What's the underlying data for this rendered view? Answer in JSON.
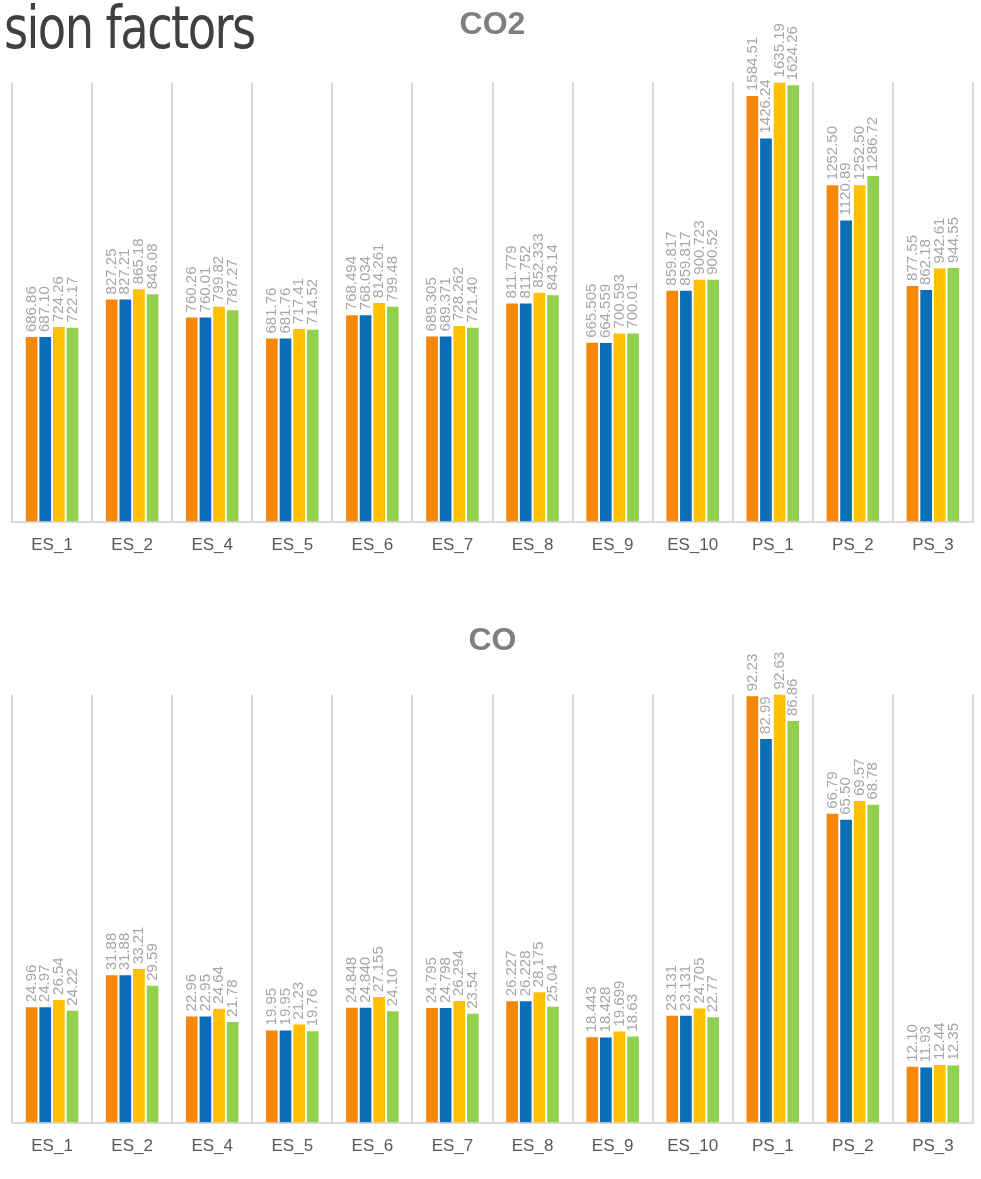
{
  "chart_data": [
    {
      "type": "bar",
      "title": "CO2",
      "annotations": [
        "sion factors"
      ],
      "categories": [
        "ES_1",
        "ES_2",
        "ES_4",
        "ES_5",
        "ES_6",
        "ES_7",
        "ES_8",
        "ES_9",
        "ES_10",
        "PS_1",
        "PS_2",
        "PS_3"
      ],
      "series": [
        {
          "color": "#f5870a",
          "values": [
            686.86,
            827.25,
            760.26,
            681.76,
            768.494,
            689.305,
            811.779,
            665.505,
            859.817,
            1584.51,
            1252.5,
            877.55
          ],
          "value_labels": [
            "686.86",
            "827.25",
            "760.26",
            "681.76",
            "768.494",
            "689.305",
            "811.779",
            "665.505",
            "859.817",
            "1584.51",
            "1252.50",
            "877.55"
          ]
        },
        {
          "color": "#0b6fb8",
          "values": [
            687.1,
            827.21,
            760.01,
            681.76,
            768.034,
            689.371,
            811.752,
            664.559,
            859.817,
            1426.24,
            1120.89,
            862.18
          ],
          "value_labels": [
            "687.10",
            "827.21",
            "760.01",
            "681.76",
            "768.034",
            "689.371",
            "811.752",
            "664.559",
            "859.817",
            "1426.24",
            "1120.89",
            "862.18"
          ]
        },
        {
          "color": "#ffc000",
          "values": [
            724.26,
            865.18,
            799.82,
            717.41,
            814.261,
            728.262,
            852.333,
            700.593,
            900.723,
            1635.19,
            1252.5,
            942.61
          ],
          "value_labels": [
            "724.26",
            "865.18",
            "799.82",
            "717.41",
            "814.261",
            "728.262",
            "852.333",
            "700.593",
            "900.723",
            "1635.19",
            "1252.50",
            "942.61"
          ]
        },
        {
          "color": "#92d050",
          "values": [
            722.17,
            846.08,
            787.27,
            714.52,
            799.48,
            721.4,
            843.14,
            700.01,
            900.52,
            1624.26,
            1286.72,
            944.55
          ],
          "value_labels": [
            "722.17",
            "846.08",
            "787.27",
            "714.52",
            "799.48",
            "721.40",
            "843.14",
            "700.01",
            "900.52",
            "1624.26",
            "1286.72",
            "944.55"
          ]
        }
      ],
      "grid": "x",
      "legend": false
    },
    {
      "type": "bar",
      "title": "CO",
      "categories": [
        "ES_1",
        "ES_2",
        "ES_4",
        "ES_5",
        "ES_6",
        "ES_7",
        "ES_8",
        "ES_9",
        "ES_10",
        "PS_1",
        "PS_2",
        "PS_3"
      ],
      "series": [
        {
          "color": "#f5870a",
          "values": [
            24.96,
            31.88,
            22.96,
            19.95,
            24.848,
            24.795,
            26.227,
            18.443,
            23.131,
            92.23,
            66.79,
            12.1
          ],
          "value_labels": [
            "24.96",
            "31.88",
            "22.96",
            "19.95",
            "24.848",
            "24.795",
            "26.227",
            "18.443",
            "23.131",
            "92.23",
            "66.79",
            "12.10"
          ]
        },
        {
          "color": "#0b6fb8",
          "values": [
            24.97,
            31.88,
            22.95,
            19.95,
            24.84,
            24.798,
            26.228,
            18.428,
            23.131,
            82.99,
            65.5,
            11.93
          ],
          "value_labels": [
            "24.97",
            "31.88",
            "22.95",
            "19.95",
            "24.840",
            "24.798",
            "26.228",
            "18.428",
            "23.131",
            "82.99",
            "65.50",
            "11.93"
          ]
        },
        {
          "color": "#ffc000",
          "values": [
            26.54,
            33.21,
            24.64,
            21.23,
            27.155,
            26.294,
            28.175,
            19.699,
            24.705,
            92.63,
            69.57,
            12.44
          ],
          "value_labels": [
            "26.54",
            "33.21",
            "24.64",
            "21.23",
            "27.155",
            "26.294",
            "28.175",
            "19.699",
            "24.705",
            "92.63",
            "69.57",
            "12.44"
          ]
        },
        {
          "color": "#92d050",
          "values": [
            24.22,
            29.59,
            21.78,
            19.76,
            24.1,
            23.54,
            25.04,
            18.63,
            22.77,
            86.86,
            68.78,
            12.35
          ],
          "value_labels": [
            "24.22",
            "29.59",
            "21.78",
            "19.76",
            "24.10",
            "23.54",
            "25.04",
            "18.63",
            "22.77",
            "86.86",
            "68.78",
            "12.35"
          ]
        }
      ],
      "grid": "x",
      "legend": false
    }
  ]
}
